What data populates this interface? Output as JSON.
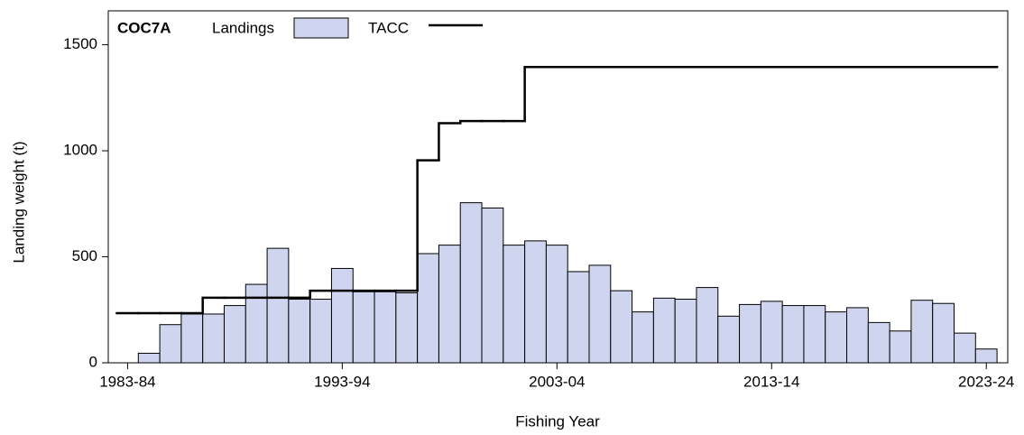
{
  "chart_data": {
    "type": "bar",
    "annotation": "COC7A",
    "xlabel": "Fishing Year",
    "ylabel": "Landing weight (t)",
    "xlim": [
      1982.1,
      2024.0
    ],
    "xticks": [
      {
        "value": 1983,
        "label": "1983-84"
      },
      {
        "value": 1993,
        "label": "1993-94"
      },
      {
        "value": 2003,
        "label": "2003-04"
      },
      {
        "value": 2013,
        "label": "2013-14"
      },
      {
        "value": 2023,
        "label": "2023-24"
      }
    ],
    "ylim": [
      0,
      1660
    ],
    "yticks": [
      0,
      500,
      1000,
      1500
    ],
    "legend": "top-left",
    "series": [
      {
        "name": "Landings",
        "type": "bar",
        "color": "#d0d5ef",
        "x": [
          1984,
          1985,
          1986,
          1987,
          1988,
          1989,
          1990,
          1991,
          1992,
          1993,
          1994,
          1995,
          1996,
          1997,
          1998,
          1999,
          2000,
          2001,
          2002,
          2003,
          2004,
          2005,
          2006,
          2007,
          2008,
          2009,
          2010,
          2011,
          2012,
          2013,
          2014,
          2015,
          2016,
          2017,
          2018,
          2019,
          2020,
          2021,
          2022,
          2023
        ],
        "values": [
          45,
          180,
          230,
          230,
          270,
          370,
          540,
          300,
          300,
          445,
          335,
          335,
          330,
          515,
          555,
          755,
          730,
          555,
          575,
          555,
          430,
          460,
          340,
          240,
          305,
          300,
          355,
          220,
          275,
          290,
          270,
          270,
          240,
          260,
          190,
          150,
          295,
          280,
          140,
          65
        ]
      },
      {
        "name": "TACC",
        "type": "step",
        "color": "#000000",
        "x": [
          1983,
          1984,
          1985,
          1986,
          1987,
          1988,
          1989,
          1990,
          1991,
          1992,
          1993,
          1994,
          1995,
          1996,
          1997,
          1998,
          1999,
          2000,
          2001,
          2002,
          2003,
          2004,
          2005,
          2006,
          2007,
          2008,
          2009,
          2010,
          2011,
          2012,
          2013,
          2014,
          2015,
          2016,
          2017,
          2018,
          2019,
          2020,
          2021,
          2022,
          2023
        ],
        "values": [
          234,
          234,
          234,
          234,
          307,
          307,
          307,
          307,
          307,
          340,
          340,
          340,
          340,
          340,
          955,
          1130,
          1140,
          1140,
          1140,
          1395,
          1395,
          1395,
          1395,
          1395,
          1395,
          1395,
          1395,
          1395,
          1395,
          1395,
          1395,
          1395,
          1395,
          1395,
          1395,
          1395,
          1395,
          1395,
          1395,
          1395,
          1395
        ]
      }
    ]
  }
}
